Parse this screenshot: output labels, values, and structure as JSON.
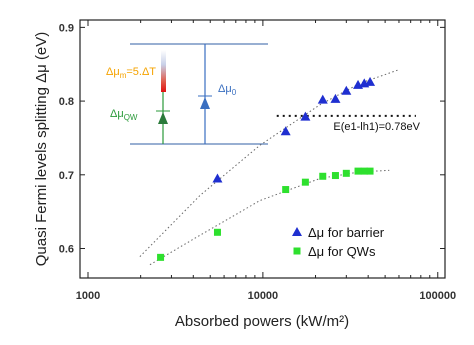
{
  "chart_data": {
    "type": "scatter",
    "x_label": "Absorbed powers (kW/m²)",
    "y_label": "Quasi Fermi levels splitting  Δμ (eV)",
    "log_x": true,
    "xlim": [
      900,
      110000
    ],
    "ylim": [
      0.56,
      0.91
    ],
    "xticks": [
      1000,
      10000,
      100000
    ],
    "yticks": [
      0.6,
      0.7,
      0.8,
      0.9
    ],
    "legend": "lower right",
    "series": [
      {
        "name": "Δμ for barrier",
        "color": "#1f2fd0",
        "marker": "triangle",
        "x": [
          5500,
          13500,
          17500,
          22000,
          26000,
          30000,
          35000,
          38000,
          41000
        ],
        "values": [
          0.695,
          0.759,
          0.779,
          0.802,
          0.803,
          0.814,
          0.822,
          0.824,
          0.826
        ]
      },
      {
        "name": "Δμ for QWs",
        "color": "#2ee02e",
        "marker": "square",
        "x": [
          2600,
          5500,
          13500,
          17500,
          22000,
          26000,
          30000,
          35000,
          38000,
          41000
        ],
        "values": [
          0.588,
          0.622,
          0.68,
          0.69,
          0.698,
          0.699,
          0.702,
          0.705,
          0.705,
          0.705
        ]
      }
    ],
    "fits": [
      {
        "x": [
          1980,
          4370,
          9610,
          21200,
          35800,
          60700
        ],
        "values": [
          0.589,
          0.672,
          0.74,
          0.795,
          0.824,
          0.843
        ]
      },
      {
        "x": [
          2260,
          4370,
          9610,
          21200,
          35800,
          52800
        ],
        "values": [
          0.578,
          0.618,
          0.665,
          0.695,
          0.704,
          0.706
        ]
      }
    ],
    "reference_line": {
      "value": 0.78,
      "x_from": 12000,
      "x_to": 75000,
      "label": "E(e1-lh1)=0.78eV"
    },
    "inset": {
      "delta_m": {
        "main": "Δμ",
        "sub": "m",
        "tail": "=5.ΔT"
      },
      "delta_qw": {
        "main": "Δμ",
        "sub": "QW"
      },
      "delta_0": {
        "main": "Δμ",
        "sub": "0"
      }
    }
  }
}
